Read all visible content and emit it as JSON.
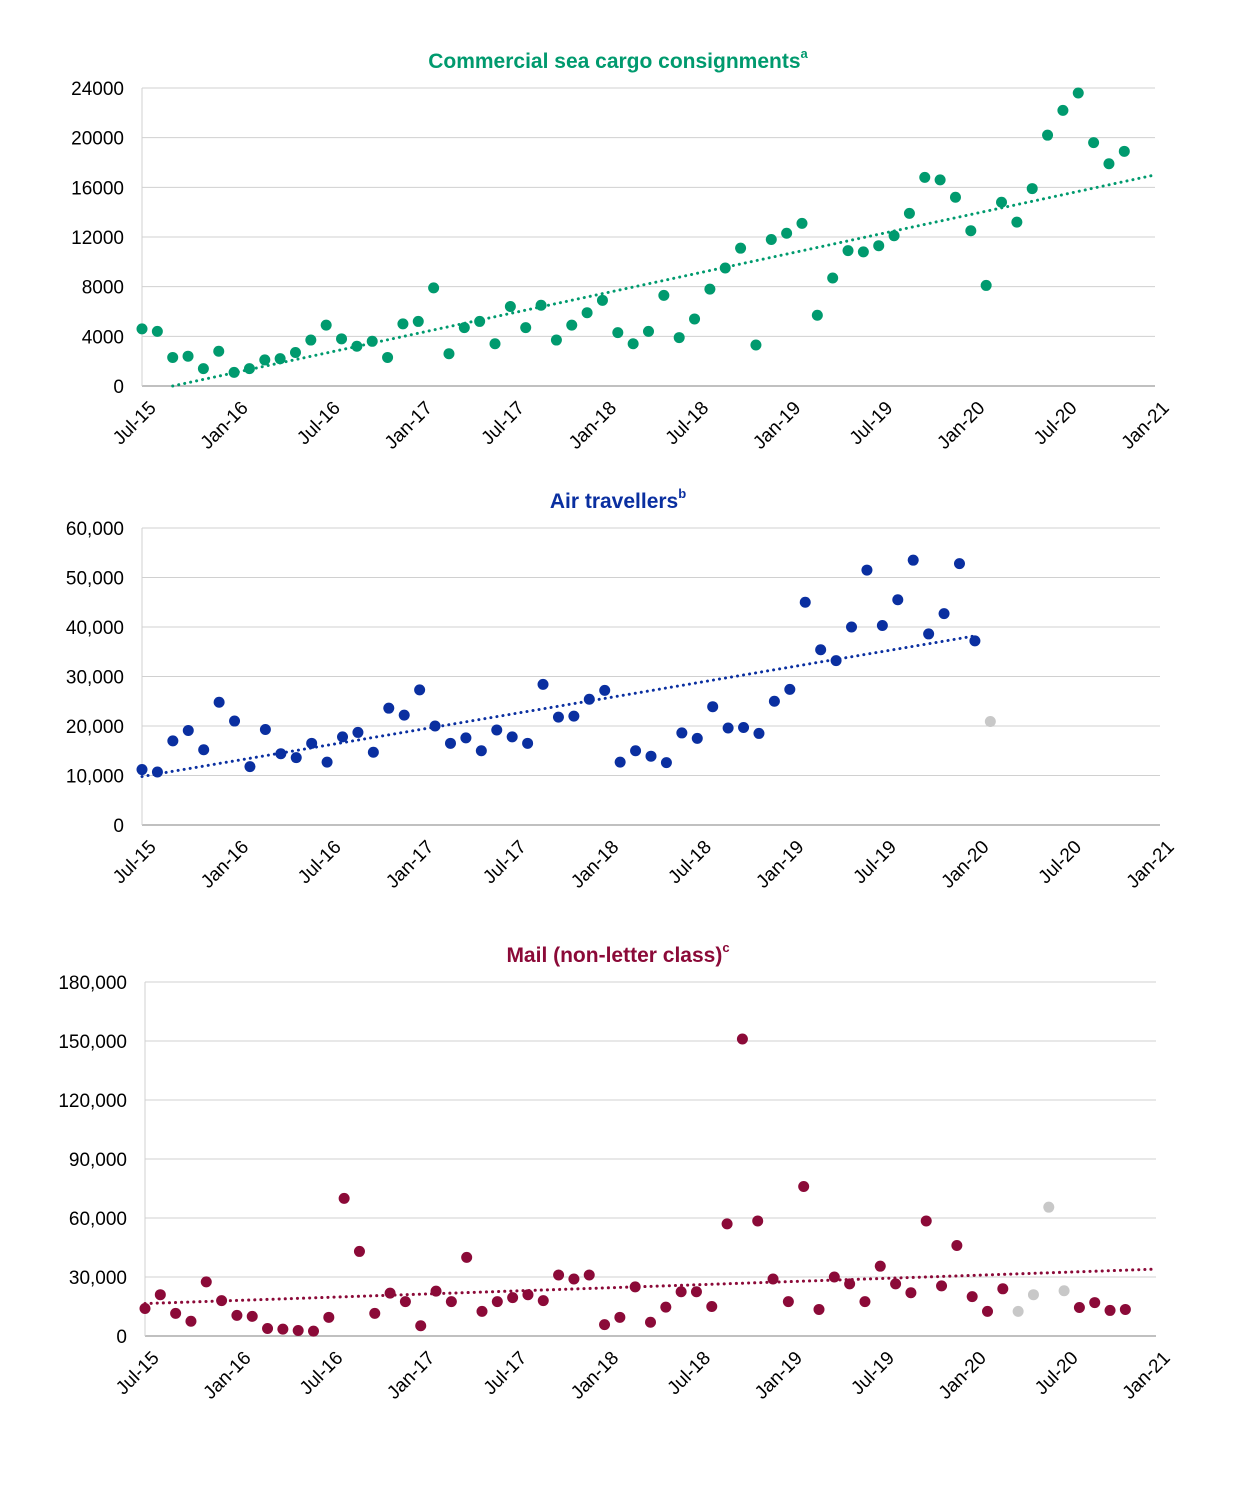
{
  "charts": [
    {
      "title": "Commercial sea cargo consignments",
      "superscript": "a",
      "color": "#009A6E",
      "ytick_labels": [
        "0",
        "4000",
        "8000",
        "12000",
        "16000",
        "20000",
        "24000"
      ],
      "xtick_labels": [
        "Jul-15",
        "Jan-16",
        "Jul-16",
        "Jan-17",
        "Jul-17",
        "Jan-18",
        "Jul-18",
        "Jan-19",
        "Jul-19",
        "Jan-20",
        "Jul-20",
        "Jan-21"
      ]
    },
    {
      "title": "Air travellers",
      "superscript": "b",
      "color": "#0A2FA0",
      "ytick_labels": [
        "0",
        "10,000",
        "20,000",
        "30,000",
        "40,000",
        "50,000",
        "60,000"
      ],
      "xtick_labels": [
        "Jul-15",
        "Jan-16",
        "Jul-16",
        "Jan-17",
        "Jul-17",
        "Jan-18",
        "Jul-18",
        "Jan-19",
        "Jul-19",
        "Jan-20",
        "Jul-20",
        "Jan-21"
      ]
    },
    {
      "title": "Mail (non-letter class)",
      "superscript": "c",
      "color": "#8B0A38",
      "ytick_labels": [
        "0",
        "30,000",
        "60,000",
        "90,000",
        "120,000",
        "150,000",
        "180,000"
      ],
      "xtick_labels": [
        "Jul-15",
        "Jan-16",
        "Jul-16",
        "Jan-17",
        "Jul-17",
        "Jan-18",
        "Jul-18",
        "Jan-19",
        "Jul-19",
        "Jan-20",
        "Jul-20",
        "Jan-21"
      ]
    }
  ],
  "chart_data": [
    {
      "type": "scatter",
      "title": "Commercial sea cargo consignments",
      "x_unit": "month",
      "xlim": [
        "2015-07",
        "2021-01"
      ],
      "ylim": [
        0,
        24000
      ],
      "grid": true,
      "color": "#009A6E",
      "series": [
        {
          "points": [
            [
              "2015-07",
              4600
            ],
            [
              "2015-08",
              4400
            ],
            [
              "2015-09",
              2300
            ],
            [
              "2015-10",
              2400
            ],
            [
              "2015-11",
              1400
            ],
            [
              "2015-12",
              2800
            ],
            [
              "2016-01",
              1100
            ],
            [
              "2016-02",
              1400
            ],
            [
              "2016-03",
              2100
            ],
            [
              "2016-04",
              2200
            ],
            [
              "2016-05",
              2700
            ],
            [
              "2016-06",
              3700
            ],
            [
              "2016-07",
              4900
            ],
            [
              "2016-08",
              3800
            ],
            [
              "2016-09",
              3200
            ],
            [
              "2016-10",
              3600
            ],
            [
              "2016-11",
              2300
            ],
            [
              "2016-12",
              5000
            ],
            [
              "2017-01",
              5200
            ],
            [
              "2017-02",
              7900
            ],
            [
              "2017-03",
              2600
            ],
            [
              "2017-04",
              4700
            ],
            [
              "2017-05",
              5200
            ],
            [
              "2017-06",
              3400
            ],
            [
              "2017-07",
              6400
            ],
            [
              "2017-08",
              4700
            ],
            [
              "2017-09",
              6500
            ],
            [
              "2017-10",
              3700
            ],
            [
              "2017-11",
              4900
            ],
            [
              "2017-12",
              5900
            ],
            [
              "2018-01",
              6900
            ],
            [
              "2018-02",
              4300
            ],
            [
              "2018-03",
              3400
            ],
            [
              "2018-04",
              4400
            ],
            [
              "2018-05",
              7300
            ],
            [
              "2018-06",
              3900
            ],
            [
              "2018-07",
              5400
            ],
            [
              "2018-08",
              7800
            ],
            [
              "2018-09",
              9500
            ],
            [
              "2018-10",
              11100
            ],
            [
              "2018-11",
              3300
            ],
            [
              "2018-12",
              11800
            ],
            [
              "2019-01",
              12300
            ],
            [
              "2019-02",
              13100
            ],
            [
              "2019-03",
              5700
            ],
            [
              "2019-04",
              8700
            ],
            [
              "2019-05",
              10900
            ],
            [
              "2019-06",
              10800
            ],
            [
              "2019-07",
              11300
            ],
            [
              "2019-08",
              12100
            ],
            [
              "2019-09",
              13900
            ],
            [
              "2019-10",
              16800
            ],
            [
              "2019-11",
              16600
            ],
            [
              "2019-12",
              15200
            ],
            [
              "2020-01",
              12500
            ],
            [
              "2020-02",
              8100
            ],
            [
              "2020-03",
              14800
            ],
            [
              "2020-04",
              13200
            ],
            [
              "2020-05",
              15900
            ],
            [
              "2020-06",
              20200
            ],
            [
              "2020-07",
              22200
            ],
            [
              "2020-08",
              23600
            ],
            [
              "2020-09",
              19600
            ],
            [
              "2020-10",
              17900
            ],
            [
              "2020-11",
              18900
            ]
          ]
        }
      ],
      "trendline": {
        "style": "dotted",
        "from": [
          "2015-09",
          0
        ],
        "to": [
          "2021-01",
          17000
        ]
      }
    },
    {
      "type": "scatter",
      "title": "Air travellers",
      "x_unit": "month",
      "xlim": [
        "2015-07",
        "2021-01"
      ],
      "ylim": [
        0,
        60000
      ],
      "grid": true,
      "color": "#0A2FA0",
      "excluded_color": "#C8C8C8",
      "series": [
        {
          "points": [
            [
              "2015-07",
              11200
            ],
            [
              "2015-08",
              10700
            ],
            [
              "2015-09",
              17000
            ],
            [
              "2015-10",
              19100
            ],
            [
              "2015-11",
              15200
            ],
            [
              "2015-12",
              24800
            ],
            [
              "2016-01",
              21000
            ],
            [
              "2016-02",
              11800
            ],
            [
              "2016-03",
              19300
            ],
            [
              "2016-04",
              14400
            ],
            [
              "2016-05",
              13600
            ],
            [
              "2016-06",
              16500
            ],
            [
              "2016-07",
              12700
            ],
            [
              "2016-08",
              17800
            ],
            [
              "2016-09",
              18700
            ],
            [
              "2016-10",
              14700
            ],
            [
              "2016-11",
              23600
            ],
            [
              "2016-12",
              22200
            ],
            [
              "2017-01",
              27300
            ],
            [
              "2017-02",
              20000
            ],
            [
              "2017-03",
              16500
            ],
            [
              "2017-04",
              17600
            ],
            [
              "2017-05",
              15000
            ],
            [
              "2017-06",
              19200
            ],
            [
              "2017-07",
              17800
            ],
            [
              "2017-08",
              16500
            ],
            [
              "2017-09",
              28400
            ],
            [
              "2017-10",
              21800
            ],
            [
              "2017-11",
              22000
            ],
            [
              "2017-12",
              25400
            ],
            [
              "2018-01",
              27200
            ],
            [
              "2018-02",
              12700
            ],
            [
              "2018-03",
              15000
            ],
            [
              "2018-04",
              13900
            ],
            [
              "2018-05",
              12600
            ],
            [
              "2018-06",
              18600
            ],
            [
              "2018-07",
              17500
            ],
            [
              "2018-08",
              23900
            ],
            [
              "2018-09",
              19600
            ],
            [
              "2018-10",
              19700
            ],
            [
              "2018-11",
              18500
            ],
            [
              "2018-12",
              25000
            ],
            [
              "2019-01",
              27400
            ],
            [
              "2019-02",
              45000
            ],
            [
              "2019-03",
              35400
            ],
            [
              "2019-04",
              33200
            ],
            [
              "2019-05",
              40000
            ],
            [
              "2019-06",
              51500
            ],
            [
              "2019-07",
              40300
            ],
            [
              "2019-08",
              45500
            ],
            [
              "2019-09",
              53500
            ],
            [
              "2019-10",
              38600
            ],
            [
              "2019-11",
              42700
            ],
            [
              "2019-12",
              52800
            ],
            [
              "2020-01",
              37200
            ]
          ]
        },
        {
          "excluded": true,
          "points": [
            [
              "2020-02",
              20900
            ]
          ]
        }
      ],
      "trendline": {
        "style": "dotted",
        "from": [
          "2015-07",
          9800
        ],
        "to": [
          "2020-01",
          38200
        ]
      }
    },
    {
      "type": "scatter",
      "title": "Mail (non-letter class)",
      "x_unit": "month",
      "xlim": [
        "2015-07",
        "2021-01"
      ],
      "ylim": [
        0,
        180000
      ],
      "grid": true,
      "color": "#8B0A38",
      "excluded_color": "#C8C8C8",
      "series": [
        {
          "points": [
            [
              "2015-07",
              14000
            ],
            [
              "2015-08",
              21000
            ],
            [
              "2015-09",
              11500
            ],
            [
              "2015-10",
              7500
            ],
            [
              "2015-11",
              27500
            ],
            [
              "2015-12",
              18000
            ],
            [
              "2016-01",
              10500
            ],
            [
              "2016-02",
              10000
            ],
            [
              "2016-03",
              3800
            ],
            [
              "2016-04",
              3500
            ],
            [
              "2016-05",
              2800
            ],
            [
              "2016-06",
              2500
            ],
            [
              "2016-07",
              9500
            ],
            [
              "2016-08",
              70000
            ],
            [
              "2016-09",
              43000
            ],
            [
              "2016-10",
              11500
            ],
            [
              "2016-11",
              21800
            ],
            [
              "2016-12",
              17500
            ],
            [
              "2017-01",
              5200
            ],
            [
              "2017-02",
              22800
            ],
            [
              "2017-03",
              17500
            ],
            [
              "2017-04",
              40000
            ],
            [
              "2017-05",
              12500
            ],
            [
              "2017-06",
              17500
            ],
            [
              "2017-07",
              19500
            ],
            [
              "2017-08",
              21000
            ],
            [
              "2017-09",
              18000
            ],
            [
              "2017-10",
              31000
            ],
            [
              "2017-11",
              29000
            ],
            [
              "2017-12",
              31000
            ],
            [
              "2018-01",
              5800
            ],
            [
              "2018-02",
              9500
            ],
            [
              "2018-03",
              25000
            ],
            [
              "2018-04",
              7000
            ],
            [
              "2018-05",
              14700
            ],
            [
              "2018-06",
              22500
            ],
            [
              "2018-07",
              22500
            ],
            [
              "2018-08",
              15000
            ],
            [
              "2018-09",
              57000
            ],
            [
              "2018-10",
              151000
            ],
            [
              "2018-11",
              58500
            ],
            [
              "2018-12",
              29000
            ],
            [
              "2019-01",
              17500
            ],
            [
              "2019-02",
              76000
            ],
            [
              "2019-03",
              13500
            ],
            [
              "2019-04",
              30000
            ],
            [
              "2019-05",
              26500
            ],
            [
              "2019-06",
              17500
            ],
            [
              "2019-07",
              35500
            ],
            [
              "2019-08",
              26500
            ],
            [
              "2019-09",
              22000
            ],
            [
              "2019-10",
              58500
            ],
            [
              "2019-11",
              25500
            ],
            [
              "2019-12",
              46000
            ],
            [
              "2020-01",
              20000
            ],
            [
              "2020-02",
              12500
            ],
            [
              "2020-03",
              24000
            ],
            [
              "2020-08",
              14500
            ],
            [
              "2020-09",
              17000
            ],
            [
              "2020-10",
              13000
            ],
            [
              "2020-11",
              13500
            ]
          ]
        },
        {
          "excluded": true,
          "points": [
            [
              "2020-04",
              12500
            ],
            [
              "2020-05",
              21000
            ],
            [
              "2020-06",
              65500
            ],
            [
              "2020-07",
              23000
            ]
          ]
        }
      ],
      "trendline": {
        "style": "dotted",
        "from": [
          "2015-07",
          16500
        ],
        "to": [
          "2021-01",
          34000
        ]
      }
    }
  ]
}
